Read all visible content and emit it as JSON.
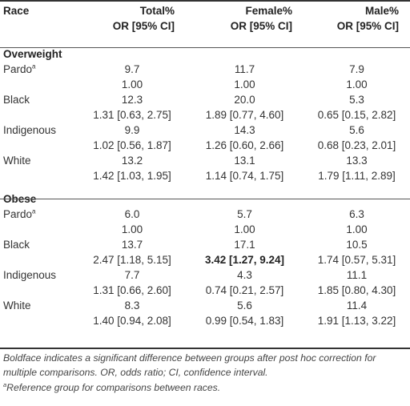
{
  "header": {
    "race": "Race",
    "total_l1": "Total%",
    "total_l2": "OR [95% CI]",
    "female_l1": "Female%",
    "female_l2": "OR [95% CI]",
    "male_l1": "Male%",
    "male_l2": "OR [95% CI]"
  },
  "sections": [
    {
      "title": "Overweight",
      "rows": [
        {
          "race": "Pardo",
          "sup": "a",
          "pct": [
            "9.7",
            "11.7",
            "7.9"
          ],
          "or": [
            "1.00",
            "1.00",
            "1.00"
          ]
        },
        {
          "race": "Black",
          "pct": [
            "12.3",
            "20.0",
            "5.3"
          ],
          "or": [
            "1.31 [0.63, 2.75]",
            "1.89 [0.77, 4.60]",
            "0.65 [0.15, 2.82]"
          ]
        },
        {
          "race": "Indigenous",
          "pct": [
            "9.9",
            "14.3",
            "5.6"
          ],
          "or": [
            "1.02 [0.56, 1.87]",
            "1.26 [0.60, 2.66]",
            "0.68 [0.23, 2.01]"
          ]
        },
        {
          "race": "White",
          "pct": [
            "13.2",
            "13.1",
            "13.3"
          ],
          "or": [
            "1.42 [1.03, 1.95]",
            "1.14 [0.74, 1.75]",
            "1.79 [1.11, 2.89]"
          ]
        }
      ]
    },
    {
      "title": "Obese",
      "rows": [
        {
          "race": "Pardo",
          "sup": "a",
          "pct": [
            "6.0",
            "5.7",
            "6.3"
          ],
          "or": [
            "1.00",
            "1.00",
            "1.00"
          ]
        },
        {
          "race": "Black",
          "pct": [
            "13.7",
            "17.1",
            "10.5"
          ],
          "or": [
            "2.47 [1.18, 5.15]",
            "3.42 [1.27, 9.24]",
            "1.74 [0.57, 5.31]"
          ]
        },
        {
          "race": "Indigenous",
          "pct": [
            "7.7",
            "4.3",
            "11.1"
          ],
          "or": [
            "1.31 [0.66, 2.60]",
            "0.74 [0.21, 2.57]",
            "1.85 [0.80, 4.30]"
          ]
        },
        {
          "race": "White",
          "pct": [
            "8.3",
            "5.6",
            "11.4"
          ],
          "or": [
            "1.40 [0.94, 2.08]",
            "0.99 [0.54, 1.83]",
            "1.91 [1.13, 3.22]"
          ]
        }
      ]
    }
  ],
  "bold_cell": {
    "section": 1,
    "row": 1,
    "col": 1
  },
  "footnotes": {
    "note1": "Boldface indicates a significant difference between groups after post hoc correction for multiple comparisons. OR, odds ratio; CI, confidence interval.",
    "note2_sup": "a",
    "note2": "Reference group for comparisons between races."
  }
}
